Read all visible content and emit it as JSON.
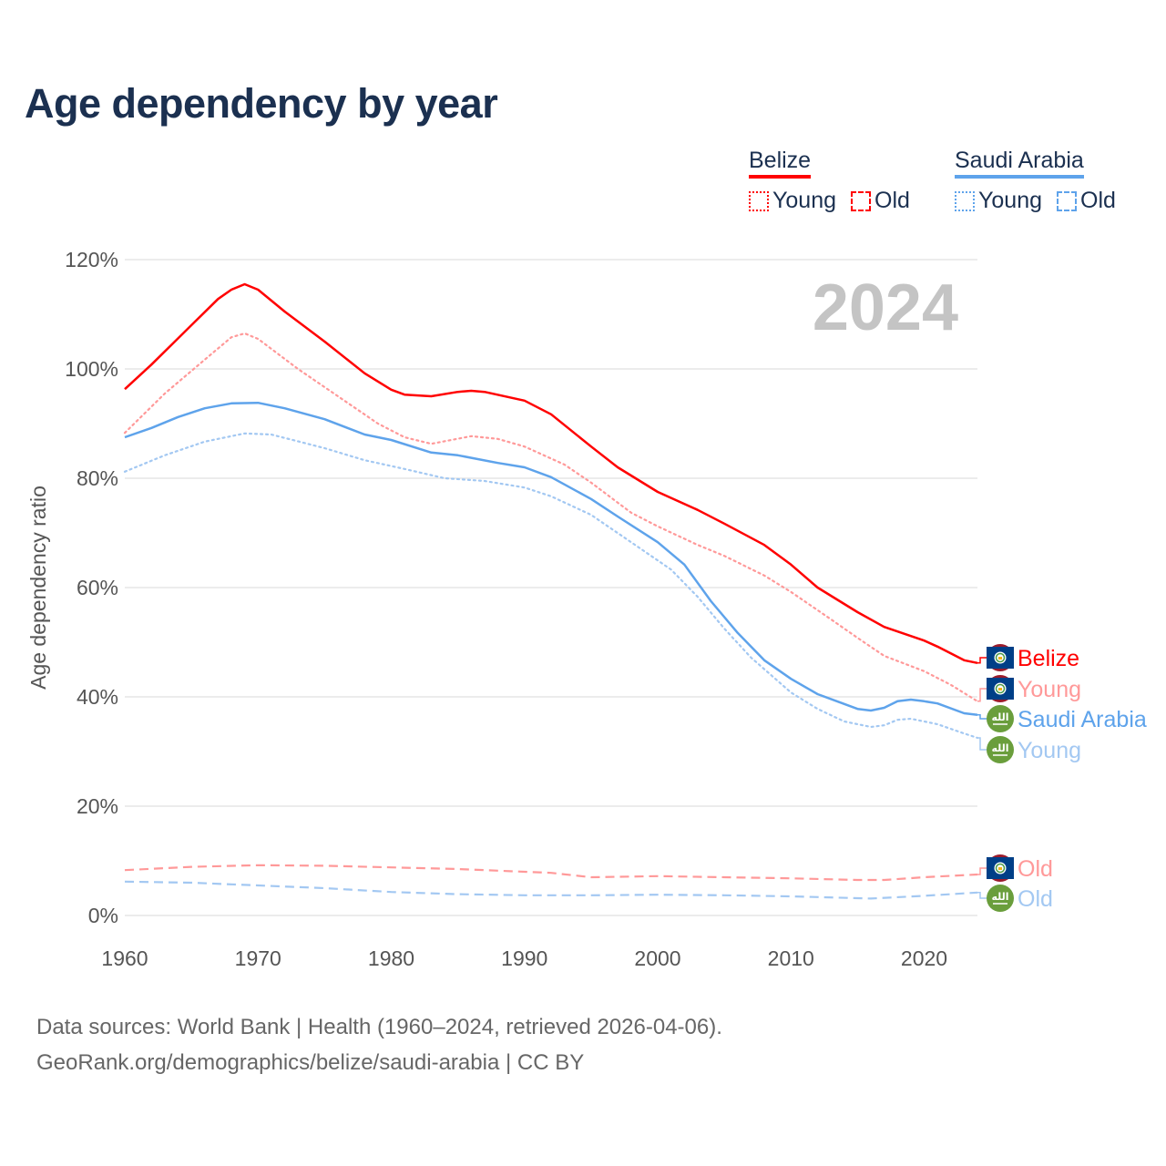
{
  "title": "Age dependency by year",
  "legend": {
    "groups": [
      {
        "name": "Belize",
        "color": "#ff0000",
        "items": [
          "Young",
          "Old"
        ]
      },
      {
        "name": "Saudi Arabia",
        "color": "#5ea3eb",
        "items": [
          "Young",
          "Old"
        ]
      }
    ]
  },
  "year_watermark": "2024",
  "source_line1": "Data sources: World Bank | Health (1960–2024, retrieved 2026-04-06).",
  "source_line2": "GeoRank.org/demographics/belize/saudi-arabia | CC BY",
  "chart_data": {
    "type": "line",
    "title": "Age dependency by year",
    "xlabel": "",
    "ylabel": "Age dependency ratio",
    "xlim": [
      1960,
      2024
    ],
    "ylim": [
      0,
      120
    ],
    "xticks": [
      "1960",
      "1970",
      "1980",
      "1990",
      "2000",
      "2010",
      "2020"
    ],
    "yticks": [
      "0%",
      "20%",
      "40%",
      "60%",
      "80%",
      "100%",
      "120%"
    ],
    "grid": true,
    "series": [
      {
        "name": "Belize",
        "label": "Belize",
        "color": "#ff0000",
        "style": "solid",
        "x": [
          1960,
          1962,
          1965,
          1967,
          1968,
          1969,
          1970,
          1972,
          1975,
          1978,
          1980,
          1981,
          1983,
          1985,
          1986,
          1987,
          1990,
          1992,
          1995,
          1997,
          2000,
          2003,
          2005,
          2008,
          2010,
          2012,
          2015,
          2017,
          2020,
          2021,
          2023,
          2024
        ],
        "y": [
          96.3,
          100.8,
          108,
          112.8,
          114.5,
          115.5,
          114.5,
          110.5,
          105,
          99.2,
          96.2,
          95.3,
          95,
          95.8,
          96,
          95.8,
          94.2,
          91.7,
          85.8,
          82,
          77.5,
          74.2,
          71.7,
          67.8,
          64.2,
          60,
          55.5,
          52.8,
          50.3,
          49.2,
          46.7,
          46.2
        ]
      },
      {
        "name": "Belize Young",
        "label": "Young",
        "color": "#ff9999",
        "style": "dotted",
        "x": [
          1960,
          1963,
          1966,
          1968,
          1969,
          1970,
          1973,
          1976,
          1979,
          1981,
          1983,
          1986,
          1988,
          1990,
          1993,
          1995,
          1998,
          2000,
          2003,
          2005,
          2008,
          2010,
          2013,
          2015,
          2017,
          2020,
          2022,
          2024
        ],
        "y": [
          88.3,
          95.5,
          101.7,
          105.8,
          106.5,
          105.5,
          100,
          95,
          90,
          87.5,
          86.3,
          87.7,
          87.2,
          85.8,
          82.5,
          79.2,
          73.7,
          71.2,
          67.8,
          65.8,
          62.2,
          59.2,
          54.2,
          50.8,
          47.5,
          44.7,
          42.2,
          39.2
        ]
      },
      {
        "name": "Saudi Arabia",
        "label": "Saudi Arabia",
        "color": "#5ea3eb",
        "style": "solid",
        "x": [
          1960,
          1962,
          1964,
          1966,
          1968,
          1970,
          1972,
          1975,
          1978,
          1980,
          1983,
          1985,
          1988,
          1990,
          1992,
          1995,
          1997,
          2000,
          2002,
          2004,
          2006,
          2008,
          2010,
          2012,
          2014,
          2015,
          2016,
          2017,
          2018,
          2019,
          2020,
          2021,
          2023,
          2024
        ],
        "y": [
          87.5,
          89.2,
          91.2,
          92.8,
          93.7,
          93.8,
          92.8,
          90.8,
          88,
          87,
          84.7,
          84.2,
          82.8,
          82,
          80.2,
          76.2,
          73,
          68.3,
          64.2,
          57.5,
          51.7,
          46.7,
          43.3,
          40.5,
          38.7,
          37.8,
          37.5,
          38,
          39.2,
          39.5,
          39.2,
          38.8,
          37,
          36.7
        ]
      },
      {
        "name": "Saudi Arabia Young",
        "label": "Young",
        "color": "#a3c8f2",
        "style": "dotted",
        "x": [
          1960,
          1963,
          1966,
          1969,
          1971,
          1975,
          1978,
          1981,
          1984,
          1987,
          1990,
          1992,
          1995,
          1998,
          2001,
          2003,
          2005,
          2007,
          2010,
          2012,
          2014,
          2016,
          2017,
          2018,
          2019,
          2021,
          2023,
          2024
        ],
        "y": [
          81.2,
          84.2,
          86.7,
          88.2,
          88,
          85.5,
          83.3,
          81.7,
          80,
          79.5,
          78.3,
          76.7,
          73.3,
          68.3,
          63.3,
          58.3,
          52.5,
          47.2,
          40.8,
          37.8,
          35.5,
          34.5,
          34.8,
          35.8,
          36,
          35,
          33.3,
          32.5
        ]
      },
      {
        "name": "Belize Old",
        "label": "Old",
        "color": "#ff9999",
        "style": "dashed",
        "x": [
          1960,
          1965,
          1970,
          1975,
          1980,
          1985,
          1990,
          1992,
          1995,
          2000,
          2005,
          2010,
          2015,
          2017,
          2020,
          2024
        ],
        "y": [
          8.3,
          8.9,
          9.2,
          9.1,
          8.8,
          8.5,
          8.0,
          7.8,
          7.0,
          7.2,
          7.0,
          6.8,
          6.5,
          6.5,
          7.0,
          7.5
        ]
      },
      {
        "name": "Saudi Arabia Old",
        "label": "Old",
        "color": "#a3c8f2",
        "style": "dashed",
        "x": [
          1960,
          1965,
          1970,
          1975,
          1980,
          1985,
          1990,
          1995,
          2000,
          2005,
          2010,
          2016,
          2020,
          2024
        ],
        "y": [
          6.2,
          6.0,
          5.5,
          5.0,
          4.3,
          3.9,
          3.7,
          3.7,
          3.8,
          3.7,
          3.5,
          3.1,
          3.6,
          4.2
        ]
      }
    ]
  }
}
